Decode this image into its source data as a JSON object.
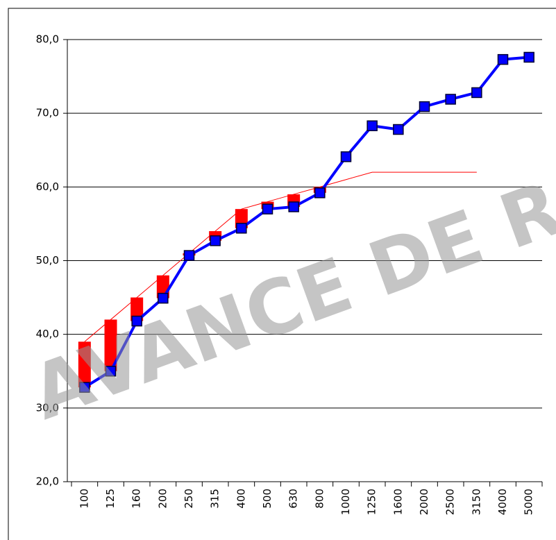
{
  "chart_data": {
    "type": "line",
    "watermark": "AVANCE DE R",
    "categories": [
      "100",
      "125",
      "160",
      "200",
      "250",
      "315",
      "400",
      "500",
      "630",
      "800",
      "1000",
      "1250",
      "1600",
      "2000",
      "2500",
      "3150",
      "4000",
      "5000"
    ],
    "series": [
      {
        "color": "#0000ff",
        "marker": "square",
        "values": [
          32.8,
          35.0,
          41.8,
          44.9,
          50.7,
          52.7,
          54.4,
          57.0,
          57.3,
          59.2,
          64.1,
          68.3,
          67.8,
          70.9,
          71.9,
          72.8,
          77.3,
          77.6
        ]
      },
      {
        "color": "#ff0000",
        "values": [
          39,
          42,
          45,
          48,
          51,
          54,
          57,
          58,
          59,
          60,
          61,
          62,
          62,
          62,
          62,
          62,
          null,
          null
        ]
      }
    ],
    "deficiency_bars_color": "#ff0000",
    "ylim": [
      20,
      80
    ],
    "yticks": [
      {
        "value": 20,
        "label": "20,0"
      },
      {
        "value": 30,
        "label": "30,0"
      },
      {
        "value": 40,
        "label": "40,0"
      },
      {
        "value": 50,
        "label": "50,0"
      },
      {
        "value": 60,
        "label": "60,0"
      },
      {
        "value": 70,
        "label": "70,0"
      },
      {
        "value": 80,
        "label": "80,0"
      }
    ],
    "grid": true
  }
}
